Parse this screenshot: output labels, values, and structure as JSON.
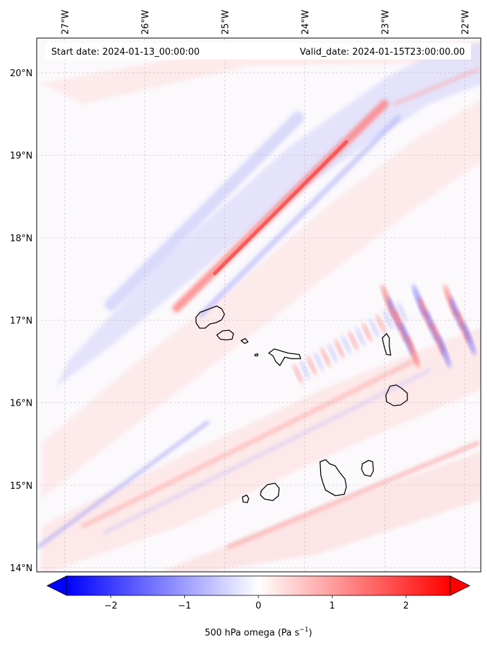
{
  "header": {
    "start_date": "Start date: 2024-01-13_00:00:00",
    "valid_date": "Valid_date: 2024-01-15T23:00:00.00"
  },
  "map": {
    "projection": "PlateCarree",
    "lon_range": [
      -27.35,
      -21.8
    ],
    "lat_range": [
      13.95,
      20.42
    ],
    "gridlines": true,
    "lon_ticks": [
      {
        "value": -27,
        "label": "27°W"
      },
      {
        "value": -26,
        "label": "26°W"
      },
      {
        "value": -25,
        "label": "25°W"
      },
      {
        "value": -24,
        "label": "24°W"
      },
      {
        "value": -23,
        "label": "23°W"
      },
      {
        "value": -22,
        "label": "22°W"
      }
    ],
    "lat_ticks": [
      {
        "value": 20,
        "label": "20°N"
      },
      {
        "value": 19,
        "label": "19°N"
      },
      {
        "value": 18,
        "label": "18°N"
      },
      {
        "value": 17,
        "label": "17°N"
      },
      {
        "value": 16,
        "label": "16°N"
      },
      {
        "value": 15,
        "label": "15°N"
      },
      {
        "value": 14,
        "label": "14°N"
      }
    ],
    "coastline_color": "#000000",
    "field": "500 hPa omega",
    "colormap": "bwr"
  },
  "colorbar": {
    "range": [
      -2.6,
      2.6
    ],
    "extend": "both",
    "ticks": [
      {
        "value": -2,
        "label": "−2"
      },
      {
        "value": -1,
        "label": "−1"
      },
      {
        "value": 0,
        "label": "0"
      },
      {
        "value": 1,
        "label": "1"
      },
      {
        "value": 2,
        "label": "2"
      }
    ],
    "label_main": "500 hPa omega (Pa s",
    "label_exp": "−1",
    "label_close": ")",
    "neg_color": "#0000ff",
    "mid_color": "#ffffff",
    "pos_color": "#ff0000"
  }
}
